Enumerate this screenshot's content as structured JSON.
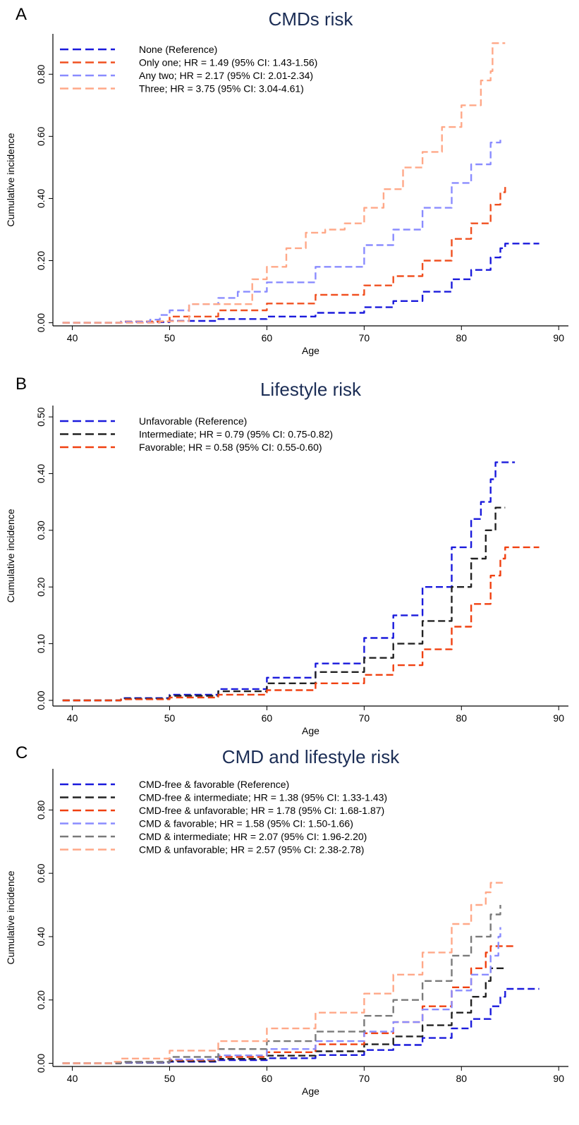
{
  "chart_data": [
    {
      "type": "line",
      "panel_letter": "A",
      "title": "CMDs risk",
      "xlabel": "Age",
      "ylabel": "Cumulative incidence",
      "xlim": [
        38,
        91
      ],
      "ylim": [
        -0.01,
        0.93
      ],
      "xticks": [
        40,
        50,
        60,
        70,
        80,
        90
      ],
      "yticks": [
        0.0,
        0.2,
        0.4,
        0.6,
        0.8
      ],
      "ytick_labels": [
        "0.00",
        "0.20",
        "0.40",
        "0.60",
        "0.80"
      ],
      "legend_position": "top-left",
      "series": [
        {
          "name": "None (Reference)",
          "color": "#1a1adc",
          "x": [
            39,
            45,
            50,
            55,
            60,
            65,
            70,
            73,
            76,
            79,
            81,
            83,
            84,
            84.5,
            88
          ],
          "y": [
            0,
            0.002,
            0.006,
            0.012,
            0.02,
            0.032,
            0.05,
            0.07,
            0.1,
            0.14,
            0.17,
            0.21,
            0.24,
            0.255,
            0.255
          ]
        },
        {
          "name": "Only one; HR = 1.49 (95% CI: 1.43-1.56)",
          "color": "#f05020",
          "x": [
            39,
            45,
            50,
            55,
            60,
            65,
            70,
            73,
            76,
            79,
            81,
            83,
            84,
            84.5
          ],
          "y": [
            0,
            0.004,
            0.02,
            0.04,
            0.062,
            0.09,
            0.12,
            0.15,
            0.2,
            0.27,
            0.32,
            0.38,
            0.42,
            0.44
          ]
        },
        {
          "name": "Any two; HR = 2.17 (95% CI: 2.01-2.34)",
          "color": "#8a8cff",
          "x": [
            39,
            45,
            48,
            49,
            50,
            52,
            55,
            57,
            60,
            65,
            70,
            73,
            76,
            79,
            81,
            83,
            84
          ],
          "y": [
            0,
            0.003,
            0.01,
            0.025,
            0.04,
            0.06,
            0.08,
            0.1,
            0.13,
            0.18,
            0.25,
            0.3,
            0.37,
            0.45,
            0.51,
            0.58,
            0.6
          ]
        },
        {
          "name": "Three; HR = 3.75 (95% CI: 3.04-4.61)",
          "color": "#ffa888",
          "x": [
            39,
            49,
            52,
            58,
            58.5,
            60,
            62,
            64,
            66,
            68,
            70,
            72,
            74,
            76,
            78,
            80,
            82,
            83,
            83.2,
            84.5
          ],
          "y": [
            0,
            0.005,
            0.06,
            0.06,
            0.14,
            0.18,
            0.24,
            0.29,
            0.3,
            0.32,
            0.37,
            0.43,
            0.5,
            0.55,
            0.63,
            0.7,
            0.78,
            0.81,
            0.9,
            0.9
          ]
        }
      ]
    },
    {
      "type": "line",
      "panel_letter": "B",
      "title": "Lifestyle risk",
      "xlabel": "Age",
      "ylabel": "Cumulative incidence",
      "xlim": [
        38,
        91
      ],
      "ylim": [
        -0.01,
        0.52
      ],
      "xticks": [
        40,
        50,
        60,
        70,
        80,
        90
      ],
      "yticks": [
        0.0,
        0.1,
        0.2,
        0.3,
        0.4,
        0.5
      ],
      "ytick_labels": [
        "0.00",
        "0.10",
        "0.20",
        "0.30",
        "0.40",
        "0.50"
      ],
      "legend_position": "top-left",
      "series": [
        {
          "name": "Unfavorable (Reference)",
          "color": "#1a1adc",
          "x": [
            39,
            45,
            50,
            55,
            60,
            65,
            70,
            73,
            76,
            79,
            81,
            82,
            83,
            83.5,
            85.5
          ],
          "y": [
            0,
            0.004,
            0.01,
            0.02,
            0.04,
            0.065,
            0.11,
            0.15,
            0.2,
            0.27,
            0.32,
            0.35,
            0.39,
            0.42,
            0.42
          ]
        },
        {
          "name": "Intermediate; HR = 0.79 (95% CI: 0.75-0.82)",
          "color": "#222222",
          "x": [
            39,
            45,
            50,
            55,
            60,
            65,
            70,
            73,
            76,
            79,
            81,
            82.5,
            83.5,
            84.5
          ],
          "y": [
            0,
            0.003,
            0.008,
            0.016,
            0.03,
            0.05,
            0.075,
            0.1,
            0.14,
            0.2,
            0.25,
            0.3,
            0.34,
            0.34
          ]
        },
        {
          "name": "Favorable; HR = 0.58 (95% CI: 0.55-0.60)",
          "color": "#f04010",
          "x": [
            39,
            45,
            50,
            55,
            60,
            65,
            70,
            73,
            76,
            79,
            81,
            83,
            84,
            84.5,
            88
          ],
          "y": [
            0,
            0.002,
            0.005,
            0.01,
            0.018,
            0.03,
            0.045,
            0.062,
            0.09,
            0.13,
            0.17,
            0.22,
            0.25,
            0.27,
            0.27
          ]
        }
      ]
    },
    {
      "type": "line",
      "panel_letter": "C",
      "title": "CMD and lifestyle risk",
      "xlabel": "Age",
      "ylabel": "Cumulative incidence",
      "xlim": [
        38,
        91
      ],
      "ylim": [
        -0.01,
        0.93
      ],
      "xticks": [
        40,
        50,
        60,
        70,
        80,
        90
      ],
      "yticks": [
        0.0,
        0.2,
        0.4,
        0.6,
        0.8
      ],
      "ytick_labels": [
        "0.00",
        "0.20",
        "0.40",
        "0.60",
        "0.80"
      ],
      "legend_position": "top-left",
      "series": [
        {
          "name": "CMD-free & favorable (Reference)",
          "color": "#1a1adc",
          "x": [
            39,
            45,
            50,
            55,
            60,
            65,
            70,
            73,
            76,
            79,
            81,
            83,
            84,
            84.5,
            88
          ],
          "y": [
            0,
            0.002,
            0.005,
            0.01,
            0.016,
            0.026,
            0.042,
            0.058,
            0.08,
            0.11,
            0.14,
            0.18,
            0.21,
            0.235,
            0.235
          ]
        },
        {
          "name": "CMD-free & intermediate; HR = 1.38 (95% CI: 1.33-1.43)",
          "color": "#222222",
          "x": [
            39,
            45,
            50,
            55,
            60,
            65,
            70,
            73,
            76,
            79,
            81,
            82.5,
            83,
            84.5
          ],
          "y": [
            0,
            0.003,
            0.007,
            0.014,
            0.024,
            0.038,
            0.06,
            0.085,
            0.12,
            0.16,
            0.21,
            0.26,
            0.3,
            0.3
          ]
        },
        {
          "name": "CMD-free & unfavorable; HR = 1.78 (95% CI: 1.68-1.87)",
          "color": "#f04010",
          "x": [
            39,
            45,
            50,
            55,
            60,
            65,
            70,
            73,
            76,
            79,
            81,
            82.5,
            83,
            85.5
          ],
          "y": [
            0,
            0.004,
            0.01,
            0.02,
            0.035,
            0.06,
            0.095,
            0.13,
            0.18,
            0.24,
            0.3,
            0.35,
            0.37,
            0.37
          ]
        },
        {
          "name": "CMD & favorable; HR = 1.58 (95% CI: 1.50-1.66)",
          "color": "#8a8cff",
          "x": [
            39,
            45,
            50,
            55,
            60,
            65,
            70,
            73,
            76,
            79,
            81,
            83,
            83.8,
            84
          ],
          "y": [
            0,
            0.004,
            0.012,
            0.025,
            0.045,
            0.07,
            0.1,
            0.13,
            0.17,
            0.23,
            0.28,
            0.34,
            0.4,
            0.43
          ]
        },
        {
          "name": "CMD & intermediate; HR = 2.07 (95% CI: 1.96-2.20)",
          "color": "#7a7a7a",
          "x": [
            39,
            45,
            50,
            55,
            60,
            65,
            70,
            73,
            76,
            79,
            81,
            83,
            84
          ],
          "y": [
            0,
            0.005,
            0.02,
            0.045,
            0.07,
            0.1,
            0.15,
            0.2,
            0.26,
            0.34,
            0.4,
            0.47,
            0.5
          ]
        },
        {
          "name": "CMD & unfavorable; HR = 2.57 (95% CI: 2.38-2.78)",
          "color": "#ffa888",
          "x": [
            39,
            44,
            45,
            50,
            55,
            60,
            65,
            70,
            73,
            76,
            79,
            81,
            82.5,
            83,
            84.5
          ],
          "y": [
            0,
            0.005,
            0.015,
            0.04,
            0.07,
            0.11,
            0.16,
            0.22,
            0.28,
            0.35,
            0.44,
            0.5,
            0.54,
            0.57,
            0.57
          ]
        }
      ]
    }
  ]
}
